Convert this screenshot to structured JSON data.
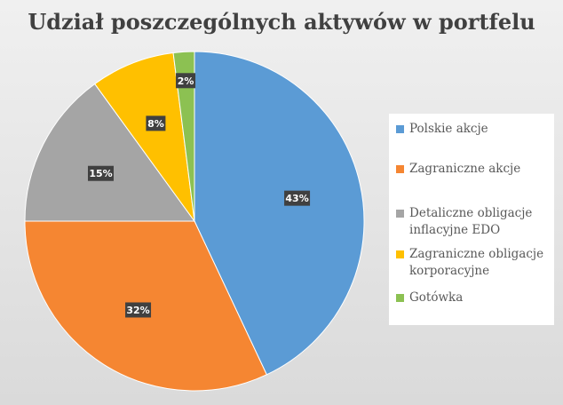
{
  "chart_data": {
    "type": "pie",
    "title": "Udział poszczególnych aktywów w portfelu",
    "categories": [
      "Polskie akcje",
      "Zagraniczne akcje",
      "Detaliczne obligacje inflacyjne EDO",
      "Zagraniczne obligacje korporacyjne",
      "Gotówka"
    ],
    "values": [
      43,
      32,
      15,
      8,
      2
    ],
    "labels": [
      "43%",
      "32%",
      "15%",
      "8%",
      "2%"
    ],
    "colors": [
      "#5B9BD5",
      "#F58632",
      "#A5A5A5",
      "#FFC000",
      "#8CC152"
    ],
    "legend_position": "right",
    "legend": [
      [
        "Polskie akcje"
      ],
      [
        "Zagraniczne akcje"
      ],
      [
        "Detaliczne obligacje",
        "inflacyjne EDO"
      ],
      [
        "Zagraniczne obligacje",
        "korporacyjne"
      ],
      [
        "Gotówka"
      ]
    ]
  }
}
